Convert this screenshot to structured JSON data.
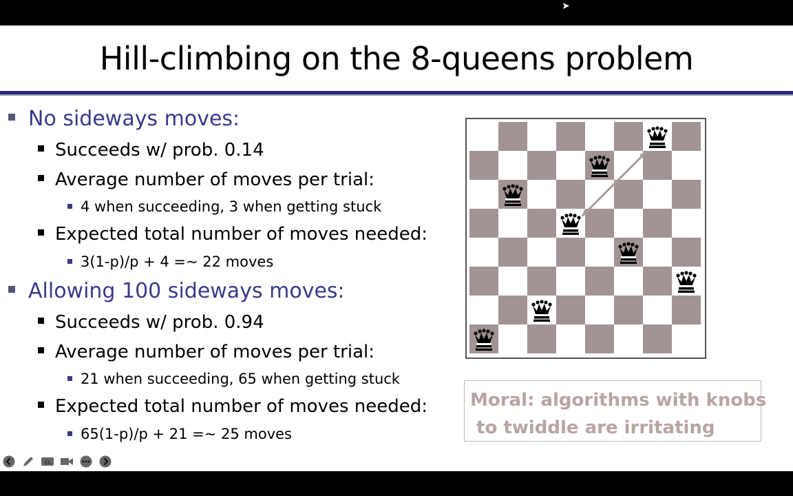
{
  "slide": {
    "title": "Hill-climbing on the 8-queens problem",
    "sections": [
      {
        "heading": "No sideways moves:",
        "items": [
          {
            "text": "Succeeds w/ prob. 0.14"
          },
          {
            "text": "Average number of moves per trial:",
            "sub": "4 when succeeding, 3 when getting stuck"
          },
          {
            "text": "Expected total number of moves needed:",
            "sub": "3(1-p)/p + 4 =~ 22 moves"
          }
        ]
      },
      {
        "heading": "Allowing 100 sideways moves:",
        "items": [
          {
            "text": "Succeeds w/ prob. 0.94"
          },
          {
            "text": "Average number of moves per trial:",
            "sub": "21 when succeeding, 65 when getting stuck"
          },
          {
            "text": "Expected total number of moves needed:",
            "sub": "65(1-p)/p + 21 =~ 25 moves"
          }
        ]
      }
    ],
    "moral": "Moral: algorithms with knobs\n to twiddle are irritating"
  },
  "board": {
    "size": 8,
    "queens_by_column": [
      7,
      2,
      6,
      3,
      1,
      4,
      0,
      5
    ],
    "colors": {
      "dark": "#a29494",
      "light": "#ffffff",
      "queen": "#000000",
      "arrow": "#a89a9a"
    }
  },
  "toolbar": {
    "icons": [
      "back-icon",
      "pen-icon",
      "captions-icon",
      "video-icon",
      "more-icon",
      "forward-icon"
    ]
  }
}
